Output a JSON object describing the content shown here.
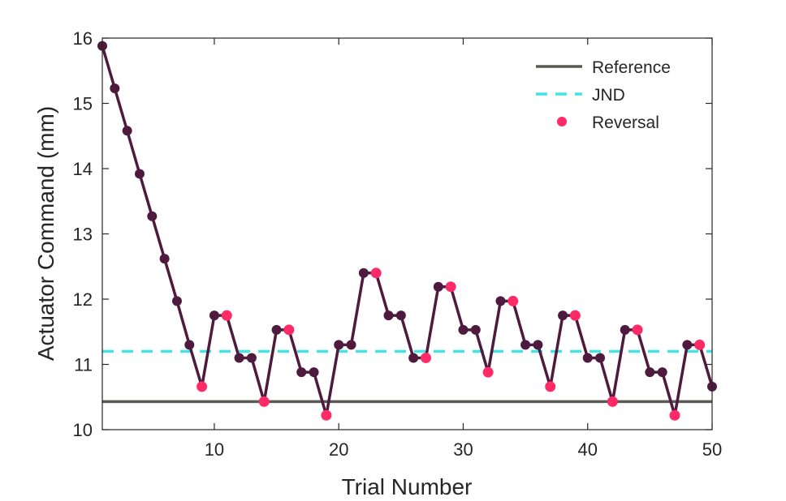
{
  "chart_data": {
    "type": "line",
    "xlabel": "Trial Number",
    "ylabel": "Actuator Command (mm)",
    "xlim": [
      1,
      50
    ],
    "ylim": [
      10,
      16
    ],
    "x_ticks": [
      10,
      20,
      30,
      40,
      50
    ],
    "y_ticks": [
      10,
      11,
      12,
      13,
      14,
      15,
      16
    ],
    "grid": false,
    "legend": {
      "placement": "top-right",
      "entries": [
        {
          "label": "Reference",
          "style": "solid-line",
          "color": "#5a5a55"
        },
        {
          "label": "JND",
          "style": "dashed-line",
          "color": "#44e4e4"
        },
        {
          "label": "Reversal",
          "style": "marker",
          "color": "#ff2a66"
        }
      ]
    },
    "reference_value": 10.43,
    "jnd_value": 11.2,
    "series": [
      {
        "color": "#4e1a3e",
        "x": [
          1,
          2,
          3,
          4,
          5,
          6,
          7,
          8,
          9,
          10,
          11,
          12,
          13,
          14,
          15,
          16,
          17,
          18,
          19,
          20,
          21,
          22,
          23,
          24,
          25,
          26,
          27,
          28,
          29,
          30,
          31,
          32,
          33,
          34,
          35,
          36,
          37,
          38,
          39,
          40,
          41,
          42,
          43,
          44,
          45,
          46,
          47,
          48,
          49,
          50
        ],
        "y": [
          15.88,
          15.23,
          14.58,
          13.92,
          13.27,
          12.62,
          11.97,
          11.3,
          10.66,
          11.75,
          11.75,
          11.1,
          11.1,
          10.43,
          11.53,
          11.53,
          10.88,
          10.88,
          10.22,
          11.3,
          11.3,
          12.4,
          12.4,
          11.75,
          11.75,
          11.1,
          11.1,
          12.19,
          12.19,
          11.53,
          11.53,
          10.88,
          11.97,
          11.97,
          11.3,
          11.3,
          10.66,
          11.75,
          11.75,
          11.1,
          11.1,
          10.43,
          11.53,
          11.53,
          10.88,
          10.88,
          10.22,
          11.3,
          11.3,
          10.66
        ]
      }
    ],
    "reversals": [
      {
        "x": 9,
        "y": 10.66
      },
      {
        "x": 11,
        "y": 11.75
      },
      {
        "x": 14,
        "y": 10.43
      },
      {
        "x": 16,
        "y": 11.53
      },
      {
        "x": 19,
        "y": 10.22
      },
      {
        "x": 23,
        "y": 12.4
      },
      {
        "x": 27,
        "y": 11.1
      },
      {
        "x": 29,
        "y": 12.19
      },
      {
        "x": 32,
        "y": 10.88
      },
      {
        "x": 34,
        "y": 11.97
      },
      {
        "x": 37,
        "y": 10.66
      },
      {
        "x": 39,
        "y": 11.75
      },
      {
        "x": 42,
        "y": 10.43
      },
      {
        "x": 44,
        "y": 11.53
      },
      {
        "x": 47,
        "y": 10.22
      },
      {
        "x": 49,
        "y": 11.3
      }
    ]
  }
}
